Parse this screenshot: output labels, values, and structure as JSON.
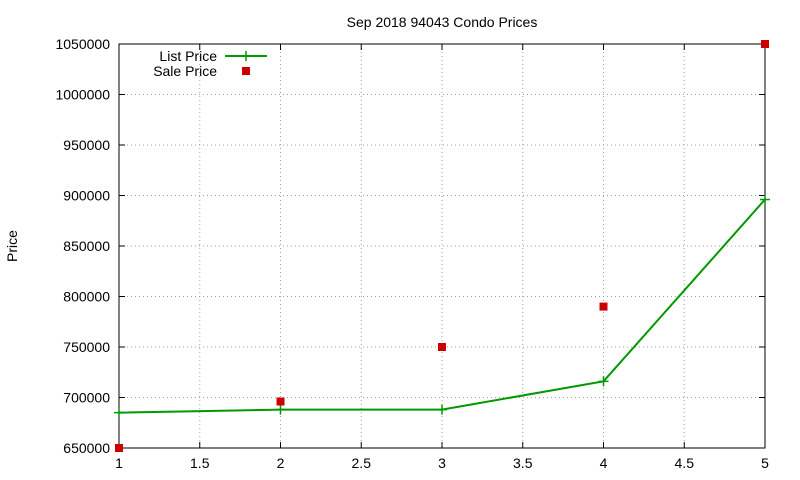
{
  "chart_data": {
    "type": "scatter",
    "title": "Sep 2018 94043 Condo Prices",
    "xlabel": "",
    "ylabel": "Price",
    "xlim": [
      1,
      5
    ],
    "ylim": [
      650000,
      1050000
    ],
    "xticks": [
      1,
      1.5,
      2,
      2.5,
      3,
      3.5,
      4,
      4.5,
      5
    ],
    "xtick_labels": [
      "1",
      "1.5",
      "2",
      "2.5",
      "3",
      "3.5",
      "4",
      "4.5",
      "5"
    ],
    "yticks": [
      650000,
      700000,
      750000,
      800000,
      850000,
      900000,
      950000,
      1000000,
      1050000
    ],
    "ytick_labels": [
      "650000",
      "700000",
      "750000",
      "800000",
      "850000",
      "900000",
      "950000",
      "1000000",
      "1050000"
    ],
    "grid": true,
    "legend_position": "top-left",
    "series": [
      {
        "name": "List Price",
        "style": "line-with-plus-markers",
        "color": "#009900",
        "x": [
          1,
          2,
          3,
          4,
          5
        ],
        "y": [
          685000,
          688000,
          688000,
          716000,
          896000
        ]
      },
      {
        "name": "Sale Price",
        "style": "square-markers",
        "color": "#cc0000",
        "x": [
          1,
          2,
          3,
          4,
          5
        ],
        "y": [
          650000,
          696000,
          750000,
          790000,
          1050000
        ]
      }
    ]
  }
}
